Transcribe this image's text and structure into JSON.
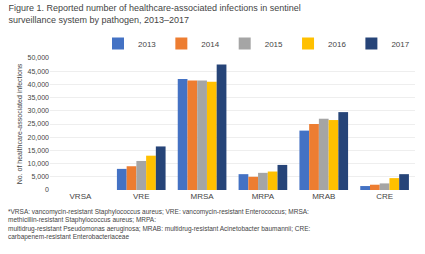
{
  "chart_data": {
    "type": "bar",
    "title": "Figure 1. Reported number of healthcare-associated infections in sentinel surveillance system by pathogen, 2013–2017",
    "ylabel": "No. of healthcare-associated infections",
    "annotations": [
      "*VRSA: vancomycin-resistant Staphylococcus aureus; VRE: vancomycin-resistant Enterococcus; MRSA:  methicillin-resistant Staphylococcus aureus; MRPA:",
      "multidrug-resistant Pseudomonas aeruginosa; MRAB: multidrug-resistant Acinetobacter baumannii; CRE: carbapenem-resistant Enterobacteriaceae"
    ],
    "categories": [
      "VRSA",
      "VRE",
      "MRSA",
      "MRPA",
      "MRAB",
      "CRE"
    ],
    "series": [
      {
        "name": "2013",
        "color": "#4472C4",
        "values": [
          0,
          8000,
          42000,
          6000,
          22500,
          1500
        ]
      },
      {
        "name": "2014",
        "color": "#ED7D31",
        "values": [
          0,
          9000,
          41500,
          5000,
          25000,
          2000
        ]
      },
      {
        "name": "2015",
        "color": "#A5A5A5",
        "values": [
          0,
          11000,
          41500,
          6500,
          27000,
          2500
        ]
      },
      {
        "name": "2016",
        "color": "#FFC000",
        "values": [
          0,
          13000,
          41000,
          7000,
          26500,
          4500
        ]
      },
      {
        "name": "2017",
        "color": "#264478",
        "values": [
          0,
          16500,
          47500,
          9500,
          29500,
          6000
        ]
      }
    ],
    "ylim": [
      0,
      50000
    ],
    "yticks": [
      0,
      {
        "value": 5000,
        "label": "5,000"
      },
      {
        "value": 10000,
        "label": "10,000"
      },
      {
        "value": 15000,
        "label": "15,000"
      },
      {
        "value": 20000,
        "label": "20,000"
      },
      {
        "value": 25000,
        "label": "25,000"
      },
      {
        "value": 30000,
        "label": "30,000"
      },
      {
        "value": 35000,
        "label": "35,000"
      },
      {
        "value": 40000,
        "label": "40,000"
      },
      {
        "value": 45000,
        "label": "45,000"
      },
      {
        "value": 50000,
        "label": "50,000"
      }
    ],
    "grid": true,
    "legend": "upper right"
  }
}
